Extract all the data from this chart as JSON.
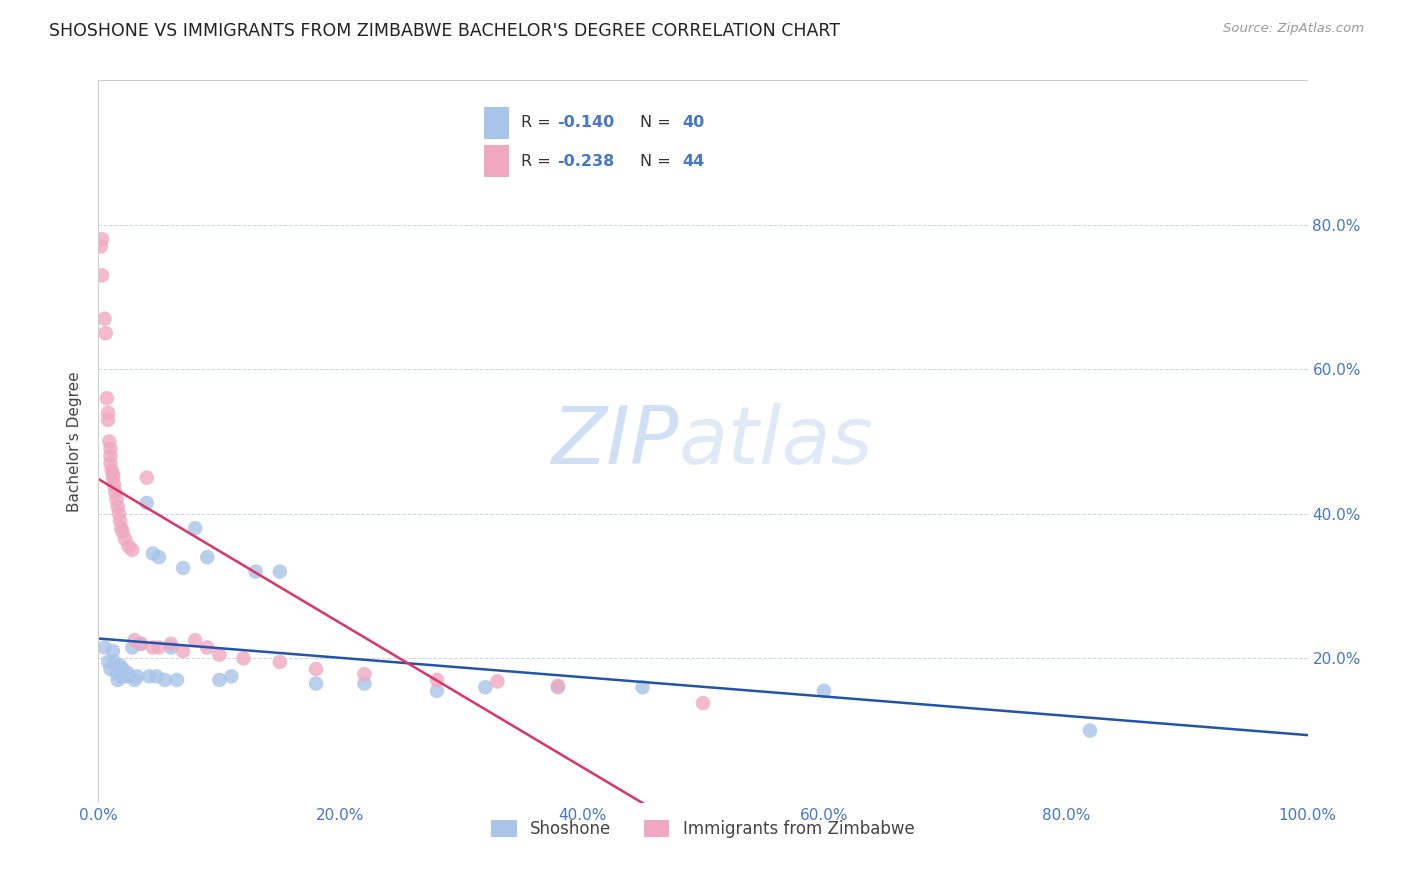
{
  "title": "SHOSHONE VS IMMIGRANTS FROM ZIMBABWE BACHELOR'S DEGREE CORRELATION CHART",
  "source": "Source: ZipAtlas.com",
  "ylabel": "Bachelor's Degree",
  "xlim": [
    0,
    1.0
  ],
  "ylim": [
    0,
    1.0
  ],
  "xticks": [
    0,
    0.2,
    0.4,
    0.6,
    0.8,
    1.0
  ],
  "xticklabels": [
    "0.0%",
    "20.0%",
    "40.0%",
    "60.0%",
    "80.0%",
    "100.0%"
  ],
  "yticks": [
    0.2,
    0.4,
    0.6,
    0.8
  ],
  "yticklabels_right": [
    "20.0%",
    "40.0%",
    "60.0%",
    "80.0%"
  ],
  "shoshone_color": "#a8c4e8",
  "zimbabwe_color": "#f0a8c0",
  "trend_shoshone_color": "#2255aa",
  "trend_zimbabwe_color": "#dd3366",
  "watermark_color": "#d0e0f4",
  "background_color": "#ffffff",
  "tick_color": "#4477cc",
  "shoshone_x": [
    0.005,
    0.008,
    0.01,
    0.012,
    0.013,
    0.015,
    0.016,
    0.018,
    0.019,
    0.02,
    0.022,
    0.024,
    0.025,
    0.028,
    0.03,
    0.032,
    0.035,
    0.04,
    0.042,
    0.045,
    0.048,
    0.05,
    0.055,
    0.06,
    0.065,
    0.07,
    0.08,
    0.09,
    0.1,
    0.11,
    0.13,
    0.15,
    0.18,
    0.22,
    0.28,
    0.32,
    0.38,
    0.45,
    0.6,
    0.82
  ],
  "shoshone_y": [
    0.215,
    0.195,
    0.185,
    0.21,
    0.195,
    0.18,
    0.17,
    0.19,
    0.175,
    0.185,
    0.175,
    0.18,
    0.175,
    0.215,
    0.17,
    0.175,
    0.22,
    0.415,
    0.175,
    0.345,
    0.175,
    0.34,
    0.17,
    0.215,
    0.17,
    0.325,
    0.38,
    0.34,
    0.17,
    0.175,
    0.32,
    0.32,
    0.165,
    0.165,
    0.155,
    0.16,
    0.16,
    0.16,
    0.155,
    0.1
  ],
  "zimbabwe_x": [
    0.002,
    0.003,
    0.003,
    0.005,
    0.006,
    0.007,
    0.008,
    0.008,
    0.009,
    0.01,
    0.01,
    0.01,
    0.011,
    0.012,
    0.012,
    0.013,
    0.014,
    0.015,
    0.016,
    0.017,
    0.018,
    0.019,
    0.02,
    0.022,
    0.025,
    0.028,
    0.03,
    0.035,
    0.04,
    0.045,
    0.05,
    0.06,
    0.07,
    0.08,
    0.09,
    0.1,
    0.12,
    0.15,
    0.18,
    0.22,
    0.28,
    0.33,
    0.38,
    0.5
  ],
  "zimbabwe_y": [
    0.77,
    0.78,
    0.73,
    0.67,
    0.65,
    0.56,
    0.54,
    0.53,
    0.5,
    0.49,
    0.48,
    0.47,
    0.46,
    0.455,
    0.45,
    0.44,
    0.43,
    0.42,
    0.41,
    0.4,
    0.39,
    0.38,
    0.375,
    0.365,
    0.355,
    0.35,
    0.225,
    0.22,
    0.45,
    0.215,
    0.215,
    0.22,
    0.21,
    0.225,
    0.215,
    0.205,
    0.2,
    0.195,
    0.185,
    0.178,
    0.17,
    0.168,
    0.162,
    0.138
  ]
}
